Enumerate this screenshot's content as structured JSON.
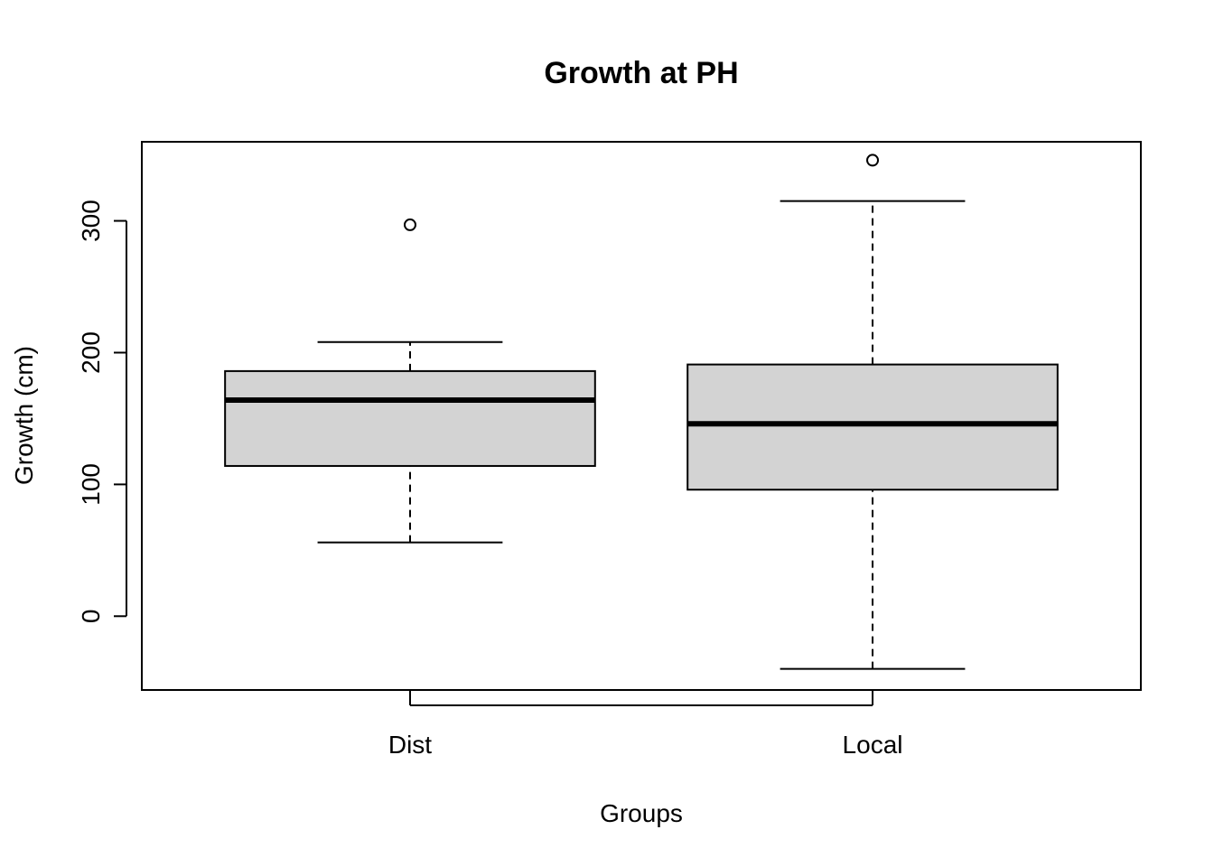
{
  "chart_data": {
    "type": "boxplot",
    "title": "Growth at PH",
    "xlabel": "Groups",
    "ylabel": "Growth (cm)",
    "ylim": [
      -56,
      360
    ],
    "yticks": [
      0,
      100,
      200,
      300
    ],
    "grid": false,
    "categories": [
      "Dist",
      "Local"
    ],
    "boxes": [
      {
        "category": "Dist",
        "whisker_low": 56,
        "q1": 114,
        "median": 164,
        "q3": 186,
        "whisker_high": 208,
        "outliers": [
          297
        ]
      },
      {
        "category": "Local",
        "whisker_low": -40,
        "q1": 96,
        "median": 146,
        "q3": 191,
        "whisker_high": 315,
        "outliers": [
          346
        ]
      }
    ],
    "box_fill": "#d3d3d3",
    "line_color": "#000000"
  }
}
